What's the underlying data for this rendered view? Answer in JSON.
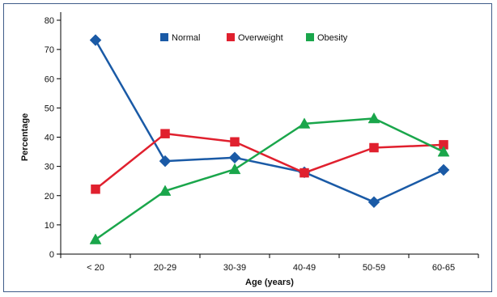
{
  "chart_data": {
    "type": "line",
    "categories": [
      "< 20",
      "20-29",
      "30-39",
      "40-49",
      "50-59",
      "60-65"
    ],
    "series": [
      {
        "name": "Normal",
        "values": [
          73.2,
          31.8,
          33.0,
          28.0,
          17.8,
          28.8
        ],
        "color": "#1a5aa6",
        "marker": "diamond"
      },
      {
        "name": "Overweight",
        "values": [
          22.2,
          41.2,
          38.4,
          27.8,
          36.4,
          37.4
        ],
        "color": "#e0202e",
        "marker": "square"
      },
      {
        "name": "Obesity",
        "values": [
          5.0,
          21.6,
          29.0,
          44.6,
          46.4,
          35.0
        ],
        "color": "#1aa64b",
        "marker": "triangle"
      }
    ],
    "xlabel": "Age (years)",
    "ylabel": "Percentage",
    "ylim": [
      0,
      80
    ],
    "yticks": [
      0,
      10,
      20,
      30,
      40,
      50,
      60,
      70,
      80
    ],
    "grid": false,
    "legend_position": "top-center"
  }
}
